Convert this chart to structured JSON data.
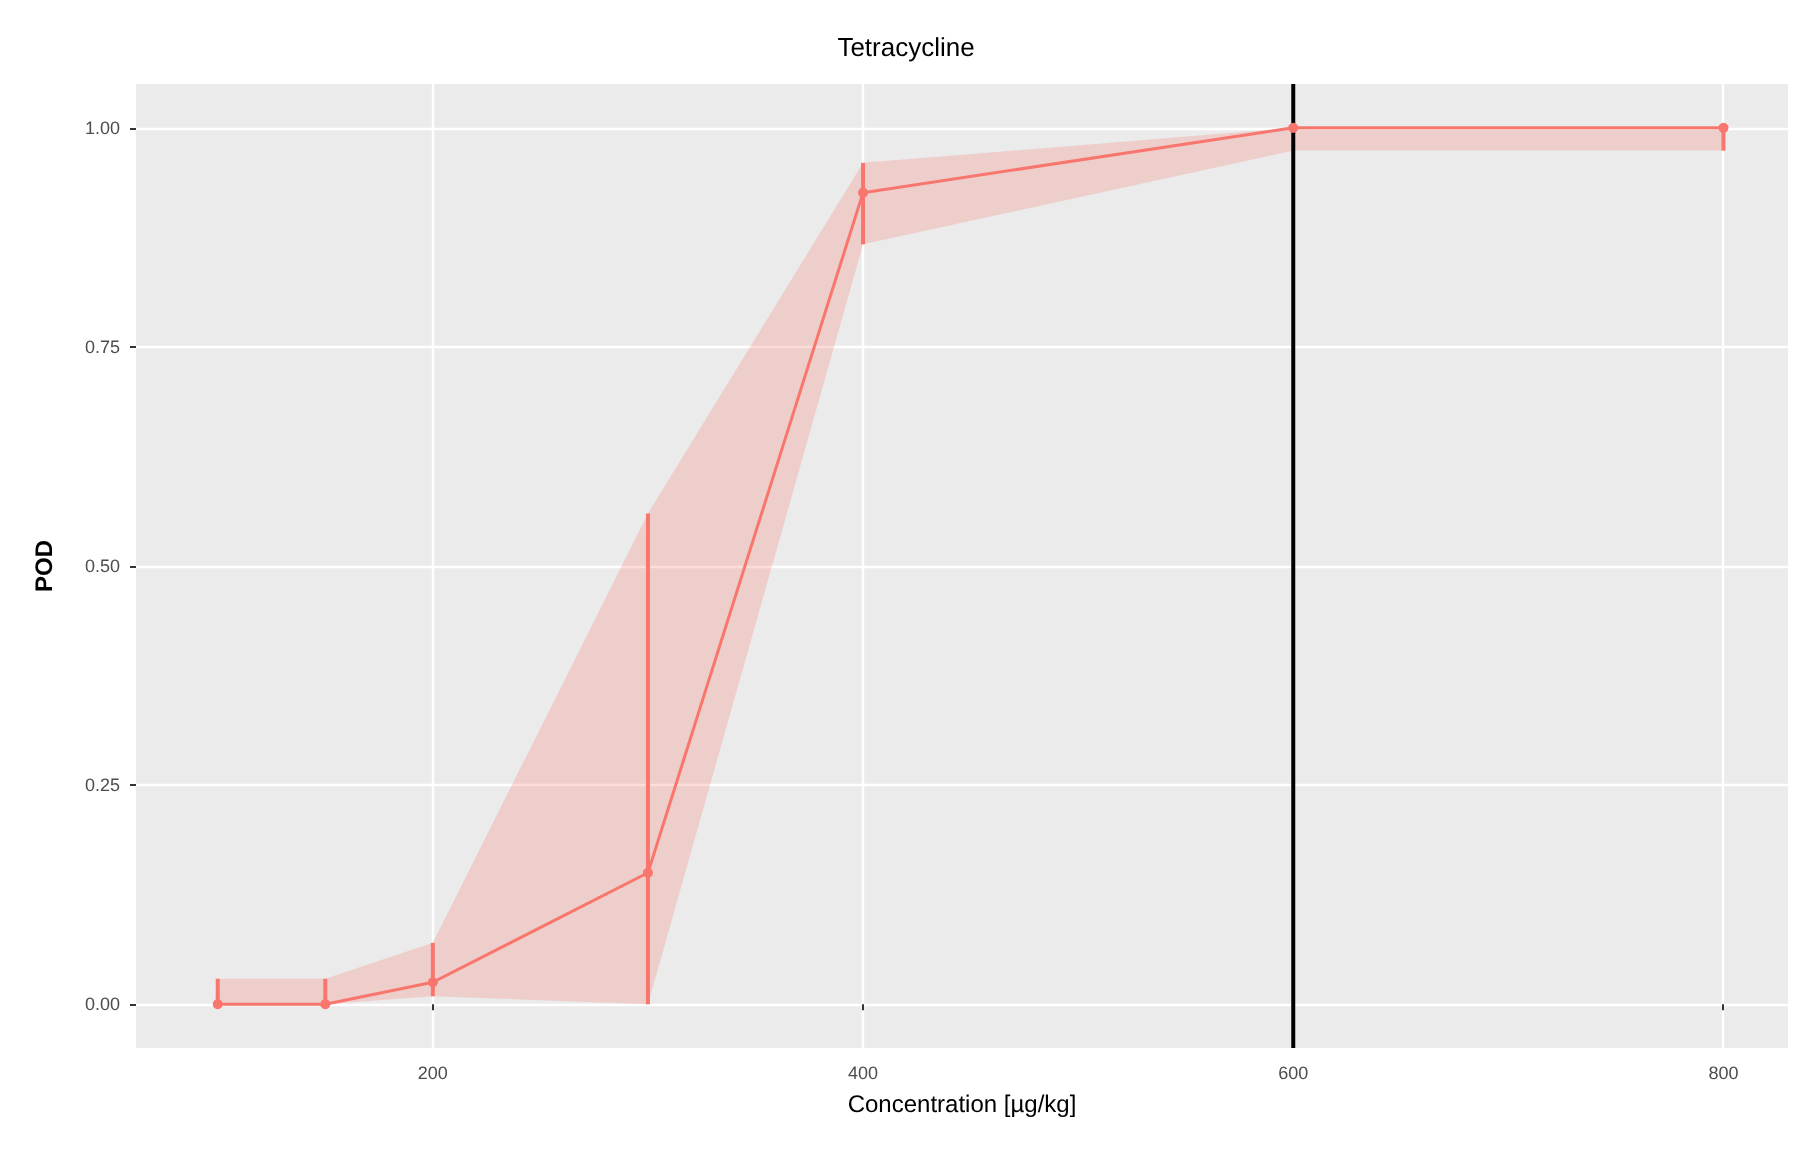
{
  "chart_data": {
    "type": "line",
    "title": "Tetracycline",
    "xlabel": "Concentration [µg/kg]",
    "ylabel": "POD",
    "x": [
      100,
      150,
      200,
      300,
      400,
      600,
      800
    ],
    "series": [
      {
        "color": "#f8766d",
        "values": [
          0,
          0,
          0.025,
          0.15,
          0.926,
          1,
          1
        ],
        "lower": [
          0,
          0,
          0.009,
          0,
          0.867,
          0.974,
          0.974
        ],
        "upper": [
          0.029,
          0.029,
          0.07,
          0.56,
          0.96,
          1,
          1
        ],
        "errors": [
          [
            0,
            0.029
          ],
          [
            0,
            0.029
          ],
          [
            0.009,
            0.07
          ],
          [
            0,
            0.56
          ],
          [
            0.867,
            0.96
          ],
          null,
          [
            0.974,
            1
          ]
        ]
      }
    ],
    "xlim": [
      62,
      830
    ],
    "ylim": [
      -0.05,
      1.05
    ],
    "xticks": [
      200,
      400,
      600,
      800
    ],
    "yticks": [
      {
        "value": 0,
        "label": "0.00"
      },
      {
        "value": 0.25,
        "label": "0.25"
      },
      {
        "value": 0.5,
        "label": "0.50"
      },
      {
        "value": 0.75,
        "label": "0.75"
      },
      {
        "value": 1,
        "label": "1.00"
      }
    ],
    "ref_lines": [
      {
        "axis": "x",
        "value": 600,
        "color": "#000000"
      }
    ],
    "grid": true,
    "marker": "circle",
    "line_style": "solid"
  }
}
